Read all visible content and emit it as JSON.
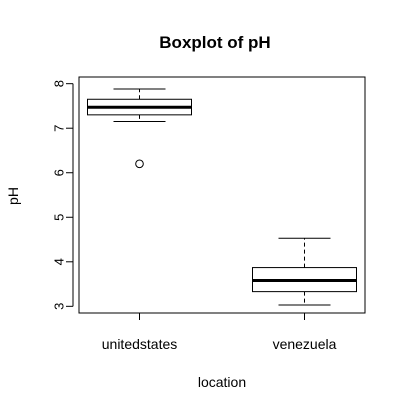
{
  "chart_data": {
    "type": "boxplot",
    "title": "Boxplot of pH",
    "xlabel": "location",
    "ylabel": "pH",
    "ylim": [
      2.85,
      8.15
    ],
    "yticks": [
      "3",
      "4",
      "5",
      "6",
      "7",
      "8"
    ],
    "grid": false,
    "categories": [
      "unitedstates",
      "venezuela"
    ],
    "boxes": [
      {
        "category": "unitedstates",
        "whisker_low": 7.15,
        "q1": 7.3,
        "median": 7.47,
        "q3": 7.65,
        "whisker_high": 7.88,
        "outliers": [
          6.2
        ]
      },
      {
        "category": "venezuela",
        "whisker_low": 3.03,
        "q1": 3.33,
        "median": 3.58,
        "q3": 3.87,
        "whisker_high": 4.53,
        "outliers": []
      }
    ]
  }
}
